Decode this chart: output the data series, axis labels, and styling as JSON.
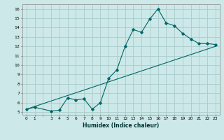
{
  "title": "",
  "xlabel": "Humidex (Indice chaleur)",
  "ylabel": "",
  "bg_color": "#cce8e8",
  "grid_color": "#aacccc",
  "line_color": "#006666",
  "marker_color": "#006666",
  "xlim": [
    -0.5,
    23.5
  ],
  "ylim": [
    4.7,
    16.5
  ],
  "xticks": [
    0,
    1,
    3,
    4,
    5,
    6,
    7,
    8,
    9,
    10,
    11,
    12,
    13,
    14,
    15,
    16,
    17,
    18,
    19,
    20,
    21,
    22,
    23
  ],
  "yticks": [
    5,
    6,
    7,
    8,
    9,
    10,
    11,
    12,
    13,
    14,
    15,
    16
  ],
  "curve_x": [
    0,
    1,
    3,
    4,
    5,
    6,
    7,
    8,
    9,
    10,
    11,
    12,
    13,
    14,
    15,
    16,
    17,
    18,
    19,
    20,
    21,
    22,
    23
  ],
  "curve_y": [
    5.3,
    5.5,
    5.1,
    5.2,
    6.5,
    6.3,
    6.4,
    5.3,
    6.0,
    8.6,
    9.5,
    12.0,
    13.8,
    13.5,
    14.9,
    16.0,
    14.5,
    14.2,
    13.4,
    12.8,
    12.3,
    12.3,
    12.2
  ],
  "line2_x": [
    0,
    23
  ],
  "line2_y": [
    5.3,
    12.0
  ]
}
